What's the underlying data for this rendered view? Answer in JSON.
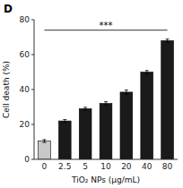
{
  "chart_data": {
    "type": "bar",
    "title": "D",
    "categories": [
      "0",
      "2.5",
      "5",
      "10",
      "20",
      "40",
      "80"
    ],
    "values": [
      10.5,
      22.0,
      29.0,
      32.0,
      38.5,
      50.0,
      68.0
    ],
    "errors": [
      0.8,
      0.8,
      0.8,
      1.0,
      1.2,
      0.9,
      0.9
    ],
    "colors": [
      "#c8c8c8",
      "#1a1a1a",
      "#1a1a1a",
      "#1a1a1a",
      "#1a1a1a",
      "#1a1a1a",
      "#1a1a1a"
    ],
    "x_label": "TiO₂ NPs (μg/mL)",
    "y_label": "Cell death (%)",
    "ylim": [
      0,
      80
    ],
    "yticks": [
      0,
      20,
      40,
      60,
      80
    ],
    "annotations": [
      {
        "text": "***",
        "x": [
          "0",
          "80"
        ],
        "y": 74
      }
    ],
    "grid": false
  }
}
